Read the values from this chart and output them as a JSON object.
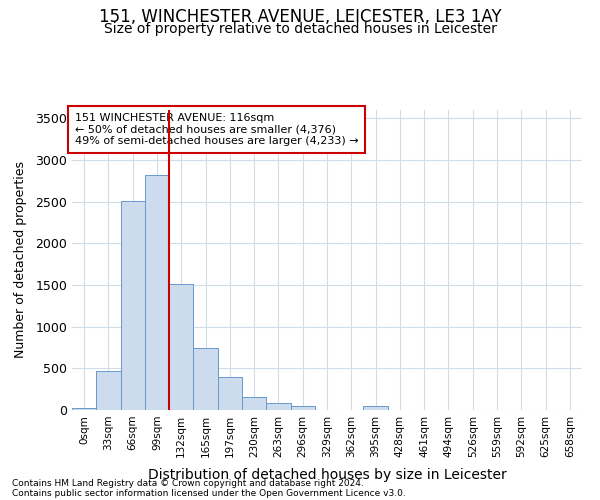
{
  "title1": "151, WINCHESTER AVENUE, LEICESTER, LE3 1AY",
  "title2": "Size of property relative to detached houses in Leicester",
  "xlabel": "Distribution of detached houses by size in Leicester",
  "ylabel": "Number of detached properties",
  "footnote1": "Contains HM Land Registry data © Crown copyright and database right 2024.",
  "footnote2": "Contains public sector information licensed under the Open Government Licence v3.0.",
  "bar_labels": [
    "0sqm",
    "33sqm",
    "66sqm",
    "99sqm",
    "132sqm",
    "165sqm",
    "197sqm",
    "230sqm",
    "263sqm",
    "296sqm",
    "329sqm",
    "362sqm",
    "395sqm",
    "428sqm",
    "461sqm",
    "494sqm",
    "526sqm",
    "559sqm",
    "592sqm",
    "625sqm",
    "658sqm"
  ],
  "bar_values": [
    20,
    470,
    2510,
    2820,
    1510,
    750,
    400,
    155,
    90,
    45,
    5,
    0,
    45,
    5,
    0,
    0,
    0,
    0,
    0,
    0,
    0
  ],
  "bar_color": "#ccdcee",
  "bar_edge_color": "#6699cc",
  "vline_x": 3.48,
  "vline_color": "#cc0000",
  "annotation_text": "151 WINCHESTER AVENUE: 116sqm\n← 50% of detached houses are smaller (4,376)\n49% of semi-detached houses are larger (4,233) →",
  "annotation_box_color": "white",
  "annotation_box_edge": "#cc0000",
  "ylim": [
    0,
    3600
  ],
  "background_color": "#ffffff",
  "plot_bg_color": "#ffffff",
  "grid_color": "#d0dce8",
  "title1_fontsize": 12,
  "title2_fontsize": 10,
  "xlabel_fontsize": 10,
  "ylabel_fontsize": 9,
  "yticks": [
    0,
    500,
    1000,
    1500,
    2000,
    2500,
    3000,
    3500
  ]
}
